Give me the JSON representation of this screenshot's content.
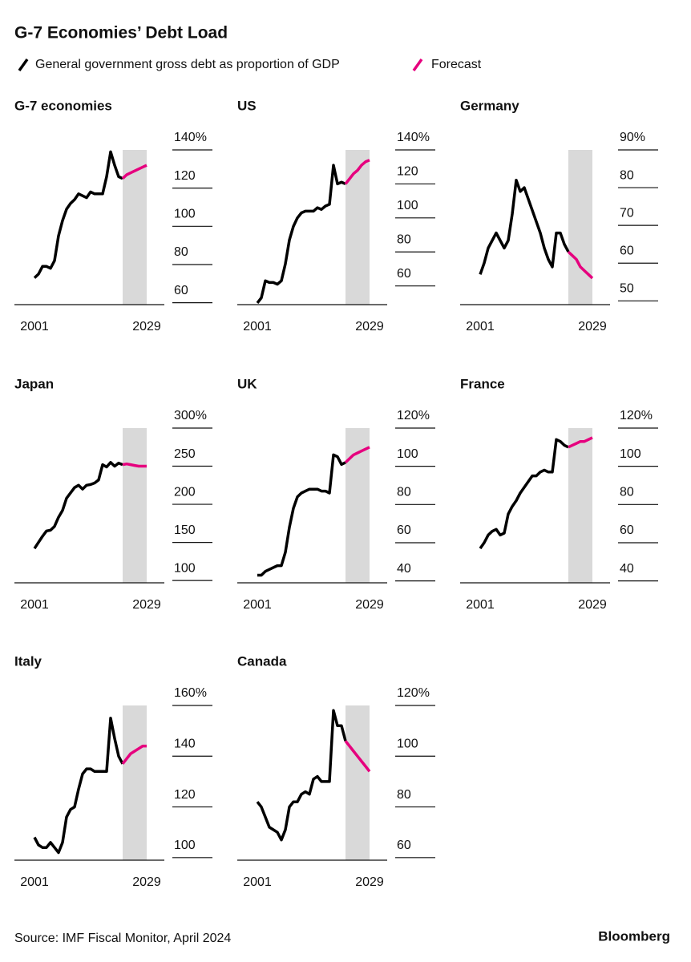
{
  "title": "G-7 Economies’ Debt Load",
  "legend": [
    {
      "name": "General government gross debt as proportion of GDP",
      "color": "#000000"
    },
    {
      "name": "Forecast",
      "color": "#e6007e"
    }
  ],
  "source": "Source: IMF Fiscal Monitor, April 2024",
  "brand": "Bloomberg",
  "chart_data": [
    {
      "type": "line",
      "title": "G-7 economies",
      "x": [
        2001,
        2002,
        2003,
        2004,
        2005,
        2006,
        2007,
        2008,
        2009,
        2010,
        2011,
        2012,
        2013,
        2014,
        2015,
        2016,
        2017,
        2018,
        2019,
        2020,
        2021,
        2022,
        2023,
        2024,
        2025,
        2026,
        2027,
        2028,
        2029
      ],
      "series": [
        {
          "color": "#000000",
          "values": [
            73,
            75,
            79,
            79,
            78,
            82,
            95,
            103,
            109,
            112,
            114,
            117,
            116,
            115,
            118,
            117,
            117,
            117,
            126,
            139,
            132,
            126,
            125,
            null,
            null,
            null,
            null,
            null,
            null
          ]
        },
        {
          "color": "#e6007e",
          "values": [
            null,
            null,
            null,
            null,
            null,
            null,
            null,
            null,
            null,
            null,
            null,
            null,
            null,
            null,
            null,
            null,
            null,
            null,
            null,
            null,
            null,
            null,
            125,
            127,
            128,
            129,
            130,
            131,
            132
          ]
        }
      ],
      "xlim": [
        1996,
        2034
      ],
      "xticks": [
        2001,
        2029
      ],
      "ylim": [
        59,
        140
      ],
      "yticks": [
        60,
        80,
        100,
        120,
        {
          "value": 140,
          "label": "140%"
        }
      ],
      "shade": [
        2023,
        2029
      ]
    },
    {
      "type": "line",
      "title": "US",
      "x": [
        2001,
        2002,
        2003,
        2004,
        2005,
        2006,
        2007,
        2008,
        2009,
        2010,
        2011,
        2012,
        2013,
        2014,
        2015,
        2016,
        2017,
        2018,
        2019,
        2020,
        2021,
        2022,
        2023,
        2024,
        2025,
        2026,
        2027,
        2028,
        2029
      ],
      "series": [
        {
          "color": "#000000",
          "values": [
            50,
            53,
            63,
            62,
            62,
            61,
            63,
            73,
            87,
            95,
            100,
            103,
            104,
            104,
            104,
            106,
            105,
            107,
            108,
            131,
            120,
            121,
            120,
            null,
            null,
            null,
            null,
            null,
            null
          ]
        },
        {
          "color": "#e6007e",
          "values": [
            null,
            null,
            null,
            null,
            null,
            null,
            null,
            null,
            null,
            null,
            null,
            null,
            null,
            null,
            null,
            null,
            null,
            null,
            null,
            null,
            null,
            null,
            120,
            123,
            126,
            128,
            131,
            133,
            134
          ]
        }
      ],
      "xlim": [
        1996,
        2034
      ],
      "xticks": [
        2001,
        2029
      ],
      "ylim": [
        49,
        140
      ],
      "yticks": [
        60,
        80,
        100,
        120,
        {
          "value": 140,
          "label": "140%"
        }
      ],
      "shade": [
        2023,
        2029
      ]
    },
    {
      "type": "line",
      "title": "Germany",
      "x": [
        2001,
        2002,
        2003,
        2004,
        2005,
        2006,
        2007,
        2008,
        2009,
        2010,
        2011,
        2012,
        2013,
        2014,
        2015,
        2016,
        2017,
        2018,
        2019,
        2020,
        2021,
        2022,
        2023,
        2024,
        2025,
        2026,
        2027,
        2028,
        2029
      ],
      "series": [
        {
          "color": "#000000",
          "values": [
            57,
            60,
            64,
            66,
            68,
            66,
            64,
            66,
            73,
            82,
            79,
            80,
            77,
            74,
            71,
            68,
            64,
            61,
            59,
            68,
            68,
            65,
            63,
            null,
            null,
            null,
            null,
            null,
            null
          ]
        },
        {
          "color": "#e6007e",
          "values": [
            null,
            null,
            null,
            null,
            null,
            null,
            null,
            null,
            null,
            null,
            null,
            null,
            null,
            null,
            null,
            null,
            null,
            null,
            null,
            null,
            null,
            null,
            63,
            62,
            61,
            59,
            58,
            57,
            56
          ]
        }
      ],
      "xlim": [
        1996,
        2034
      ],
      "xticks": [
        2001,
        2029
      ],
      "ylim": [
        49,
        90
      ],
      "yticks": [
        50,
        60,
        70,
        80,
        {
          "value": 90,
          "label": "90%"
        }
      ],
      "shade": [
        2023,
        2029
      ]
    },
    {
      "type": "line",
      "title": "Japan",
      "x": [
        2001,
        2002,
        2003,
        2004,
        2005,
        2006,
        2007,
        2008,
        2009,
        2010,
        2011,
        2012,
        2013,
        2014,
        2015,
        2016,
        2017,
        2018,
        2019,
        2020,
        2021,
        2022,
        2023,
        2024,
        2025,
        2026,
        2027,
        2028,
        2029
      ],
      "series": [
        {
          "color": "#000000",
          "values": [
            142,
            150,
            158,
            165,
            166,
            171,
            183,
            192,
            208,
            215,
            222,
            225,
            220,
            225,
            226,
            228,
            232,
            252,
            249,
            255,
            250,
            254,
            252,
            null,
            null,
            null,
            null,
            null,
            null
          ]
        },
        {
          "color": "#e6007e",
          "values": [
            null,
            null,
            null,
            null,
            null,
            null,
            null,
            null,
            null,
            null,
            null,
            null,
            null,
            null,
            null,
            null,
            null,
            null,
            null,
            null,
            null,
            null,
            252,
            253,
            252,
            251,
            250,
            250,
            250
          ]
        }
      ],
      "xlim": [
        1996,
        2034
      ],
      "xticks": [
        2001,
        2029
      ],
      "ylim": [
        97,
        300
      ],
      "yticks": [
        100,
        150,
        200,
        250,
        {
          "value": 300,
          "label": "300%"
        }
      ],
      "shade": [
        2023,
        2029
      ]
    },
    {
      "type": "line",
      "title": "UK",
      "x": [
        2001,
        2002,
        2003,
        2004,
        2005,
        2006,
        2007,
        2008,
        2009,
        2010,
        2011,
        2012,
        2013,
        2014,
        2015,
        2016,
        2017,
        2018,
        2019,
        2020,
        2021,
        2022,
        2023,
        2024,
        2025,
        2026,
        2027,
        2028,
        2029
      ],
      "series": [
        {
          "color": "#000000",
          "values": [
            43,
            43,
            45,
            46,
            47,
            48,
            48,
            55,
            68,
            78,
            84,
            86,
            87,
            88,
            88,
            88,
            87,
            87,
            86,
            106,
            105,
            101,
            102,
            null,
            null,
            null,
            null,
            null,
            null
          ]
        },
        {
          "color": "#e6007e",
          "values": [
            null,
            null,
            null,
            null,
            null,
            null,
            null,
            null,
            null,
            null,
            null,
            null,
            null,
            null,
            null,
            null,
            null,
            null,
            null,
            null,
            null,
            null,
            102,
            104,
            106,
            107,
            108,
            109,
            110
          ]
        }
      ],
      "xlim": [
        1996,
        2034
      ],
      "xticks": [
        2001,
        2029
      ],
      "ylim": [
        39,
        120
      ],
      "yticks": [
        40,
        60,
        80,
        100,
        {
          "value": 120,
          "label": "120%"
        }
      ],
      "shade": [
        2023,
        2029
      ]
    },
    {
      "type": "line",
      "title": "France",
      "x": [
        2001,
        2002,
        2003,
        2004,
        2005,
        2006,
        2007,
        2008,
        2009,
        2010,
        2011,
        2012,
        2013,
        2014,
        2015,
        2016,
        2017,
        2018,
        2019,
        2020,
        2021,
        2022,
        2023,
        2024,
        2025,
        2026,
        2027,
        2028,
        2029
      ],
      "series": [
        {
          "color": "#000000",
          "values": [
            57,
            60,
            64,
            66,
            67,
            64,
            65,
            75,
            79,
            82,
            86,
            89,
            92,
            95,
            95,
            97,
            98,
            97,
            97,
            114,
            113,
            111,
            110,
            null,
            null,
            null,
            null,
            null,
            null
          ]
        },
        {
          "color": "#e6007e",
          "values": [
            null,
            null,
            null,
            null,
            null,
            null,
            null,
            null,
            null,
            null,
            null,
            null,
            null,
            null,
            null,
            null,
            null,
            null,
            null,
            null,
            null,
            null,
            110,
            111,
            112,
            113,
            113,
            114,
            115
          ]
        }
      ],
      "xlim": [
        1996,
        2034
      ],
      "xticks": [
        2001,
        2029
      ],
      "ylim": [
        39,
        120
      ],
      "yticks": [
        40,
        60,
        80,
        100,
        {
          "value": 120,
          "label": "120%"
        }
      ],
      "shade": [
        2023,
        2029
      ]
    },
    {
      "type": "line",
      "title": "Italy",
      "x": [
        2001,
        2002,
        2003,
        2004,
        2005,
        2006,
        2007,
        2008,
        2009,
        2010,
        2011,
        2012,
        2013,
        2014,
        2015,
        2016,
        2017,
        2018,
        2019,
        2020,
        2021,
        2022,
        2023,
        2024,
        2025,
        2026,
        2027,
        2028,
        2029
      ],
      "series": [
        {
          "color": "#000000",
          "values": [
            108,
            105,
            104,
            104,
            106,
            104,
            102,
            106,
            116,
            119,
            120,
            127,
            133,
            135,
            135,
            134,
            134,
            134,
            134,
            155,
            147,
            140,
            137,
            null,
            null,
            null,
            null,
            null,
            null
          ]
        },
        {
          "color": "#e6007e",
          "values": [
            null,
            null,
            null,
            null,
            null,
            null,
            null,
            null,
            null,
            null,
            null,
            null,
            null,
            null,
            null,
            null,
            null,
            null,
            null,
            null,
            null,
            null,
            137,
            139,
            141,
            142,
            143,
            144,
            144
          ]
        }
      ],
      "xlim": [
        1996,
        2034
      ],
      "xticks": [
        2001,
        2029
      ],
      "ylim": [
        99,
        160
      ],
      "yticks": [
        100,
        120,
        140,
        {
          "value": 160,
          "label": "160%"
        }
      ],
      "shade": [
        2023,
        2029
      ]
    },
    {
      "type": "line",
      "title": "Canada",
      "x": [
        2001,
        2002,
        2003,
        2004,
        2005,
        2006,
        2007,
        2008,
        2009,
        2010,
        2011,
        2012,
        2013,
        2014,
        2015,
        2016,
        2017,
        2018,
        2019,
        2020,
        2021,
        2022,
        2023,
        2024,
        2025,
        2026,
        2027,
        2028,
        2029
      ],
      "series": [
        {
          "color": "#000000",
          "values": [
            82,
            80,
            76,
            72,
            71,
            70,
            67,
            71,
            80,
            82,
            82,
            85,
            86,
            85,
            91,
            92,
            90,
            90,
            90,
            118,
            112,
            112,
            106,
            null,
            null,
            null,
            null,
            null,
            null
          ]
        },
        {
          "color": "#e6007e",
          "values": [
            null,
            null,
            null,
            null,
            null,
            null,
            null,
            null,
            null,
            null,
            null,
            null,
            null,
            null,
            null,
            null,
            null,
            null,
            null,
            null,
            null,
            null,
            106,
            104,
            102,
            100,
            98,
            96,
            94
          ]
        }
      ],
      "xlim": [
        1996,
        2034
      ],
      "xticks": [
        2001,
        2029
      ],
      "ylim": [
        59,
        120
      ],
      "yticks": [
        60,
        80,
        100,
        {
          "value": 120,
          "label": "120%"
        }
      ],
      "shade": [
        2023,
        2029
      ]
    }
  ]
}
